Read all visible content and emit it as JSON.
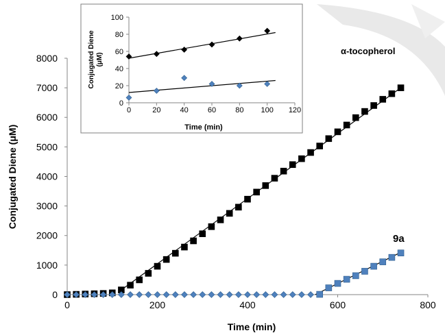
{
  "chart_data": [
    {
      "type": "scatter",
      "xlabel": "Time (min)",
      "ylabel": "Conjugated Diene (μM)",
      "xlim": [
        0,
        800
      ],
      "ylim": [
        0,
        8000
      ],
      "xticks": [
        "0",
        "200",
        "400",
        "600",
        "800"
      ],
      "yticks": [
        "0",
        "1000",
        "2000",
        "3000",
        "4000",
        "5000",
        "6000",
        "7000",
        "8000"
      ],
      "grid": false,
      "series": [
        {
          "name": "α-tocopherol",
          "marker": "square",
          "color": "#000000",
          "x": [
            0,
            20,
            40,
            60,
            80,
            100,
            120,
            140,
            160,
            180,
            200,
            220,
            240,
            260,
            280,
            300,
            320,
            340,
            360,
            380,
            400,
            420,
            440,
            460,
            480,
            500,
            520,
            540,
            560,
            580,
            600,
            620,
            640,
            660,
            680,
            700,
            720,
            740
          ],
          "values": [
            0,
            10,
            20,
            30,
            40,
            60,
            160,
            320,
            500,
            720,
            960,
            1190,
            1400,
            1610,
            1820,
            2060,
            2300,
            2530,
            2750,
            2960,
            3230,
            3470,
            3690,
            3940,
            4180,
            4400,
            4600,
            4810,
            5030,
            5280,
            5510,
            5740,
            5990,
            6200,
            6400,
            6610,
            6800,
            7000
          ]
        },
        {
          "name": "9a",
          "marker": "square",
          "color": "#4f81bd",
          "x": [
            560,
            580,
            600,
            620,
            640,
            660,
            680,
            700,
            720,
            740
          ],
          "values": [
            10,
            230,
            380,
            520,
            640,
            790,
            960,
            1110,
            1260,
            1410
          ]
        },
        {
          "name": "",
          "marker": "diamond",
          "color": "#4f81bd",
          "x": [
            0,
            20,
            40,
            60,
            80,
            100,
            120,
            140,
            160,
            180,
            200,
            220,
            240,
            260,
            280,
            300,
            320,
            340,
            360,
            380,
            400,
            420,
            440,
            460,
            480,
            500,
            520,
            540
          ],
          "values": [
            0,
            0,
            0,
            0,
            0,
            0,
            0,
            0,
            0,
            0,
            0,
            0,
            0,
            0,
            0,
            0,
            0,
            0,
            0,
            0,
            0,
            0,
            0,
            0,
            0,
            0,
            0,
            0
          ]
        }
      ],
      "trendlines": [
        {
          "series": "α-tocopherol",
          "from": [
            120,
            160
          ],
          "to": [
            740,
            7000
          ]
        },
        {
          "series": "9a",
          "from": [
            550,
            0
          ],
          "to": [
            740,
            1430
          ]
        }
      ]
    },
    {
      "type": "scatter",
      "position": "inset",
      "xlabel": "Time (min)",
      "ylabel": "Conjugated Diene (μM)",
      "xlim": [
        0,
        120
      ],
      "ylim": [
        0,
        100
      ],
      "xticks": [
        "0",
        "20",
        "40",
        "60",
        "80",
        "100",
        "120"
      ],
      "yticks": [
        "0",
        "20",
        "40",
        "60",
        "80",
        "100"
      ],
      "grid": false,
      "series": [
        {
          "name": "",
          "marker": "diamond",
          "color": "#000000",
          "x": [
            0,
            20,
            40,
            60,
            80,
            100
          ],
          "values": [
            54,
            57,
            62,
            68,
            75,
            84
          ]
        },
        {
          "name": "",
          "marker": "diamond",
          "color": "#4f81bd",
          "x": [
            0,
            20,
            40,
            60,
            80,
            100
          ],
          "values": [
            6,
            14,
            29,
            22,
            20,
            22
          ]
        }
      ],
      "trendlines": [
        {
          "from": [
            0,
            52
          ],
          "to": [
            106,
            82
          ]
        },
        {
          "from": [
            0,
            12
          ],
          "to": [
            106,
            26
          ]
        }
      ]
    }
  ]
}
